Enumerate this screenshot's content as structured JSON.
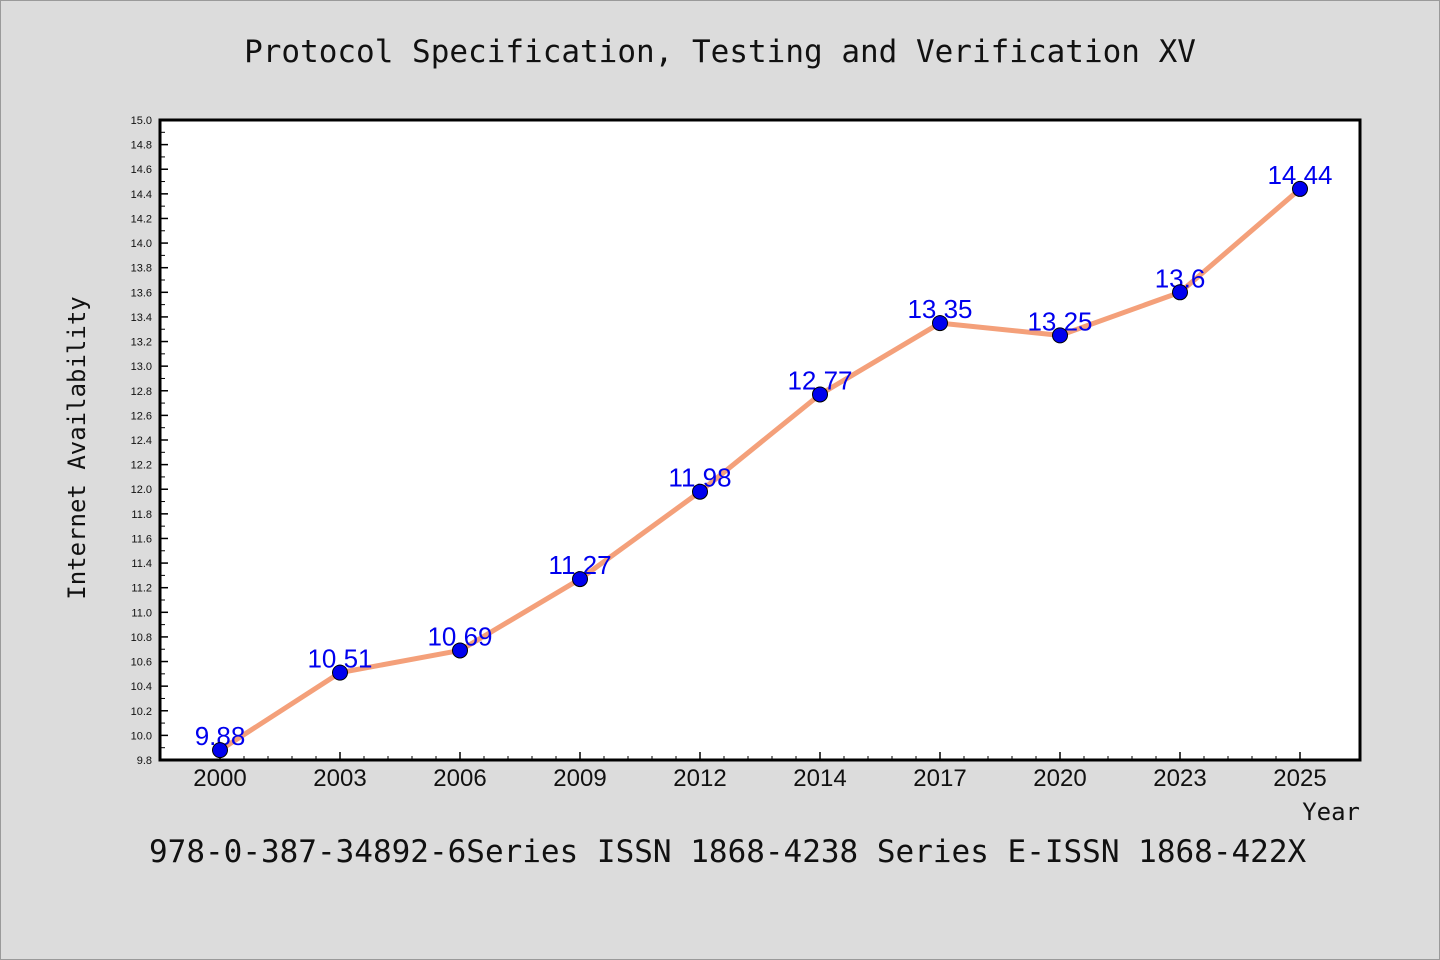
{
  "title": "Protocol Specification, Testing and Verification XV",
  "footer": "978-0-387-34892-6Series ISSN 1868-4238 Series E-ISSN 1868-422X",
  "chart_data": {
    "type": "line",
    "title": "Protocol Specification, Testing and Verification XV",
    "xlabel": "Year",
    "ylabel": "Internet Availability",
    "categories": [
      "2000",
      "2003",
      "2006",
      "2009",
      "2012",
      "2014",
      "2017",
      "2020",
      "2023",
      "2025"
    ],
    "series": [
      {
        "values": [
          9.88,
          10.51,
          10.69,
          11.27,
          11.98,
          12.77,
          13.35,
          13.25,
          13.6,
          14.44
        ],
        "line_color": "#f4a07a",
        "marker_color": "#0000ee"
      }
    ],
    "data_labels": [
      "9.88",
      "10.51",
      "10.69",
      "11.27",
      "11.98",
      "12.77",
      "13.35",
      "13.25",
      "13.6",
      "14.44"
    ],
    "ylim": [
      9.8,
      15.0
    ],
    "y_ticks": [
      "9.8",
      "10.0",
      "10.2",
      "10.4",
      "10.6",
      "10.8",
      "11.0",
      "11.2",
      "11.4",
      "11.6",
      "11.8",
      "12.0",
      "12.2",
      "12.4",
      "12.6",
      "12.8",
      "13.0",
      "13.2",
      "13.4",
      "13.6",
      "13.8",
      "14.0",
      "14.2",
      "14.4",
      "14.6",
      "14.8",
      "15.0"
    ],
    "grid": false,
    "legend": "none",
    "label_color": "#0000ee"
  }
}
